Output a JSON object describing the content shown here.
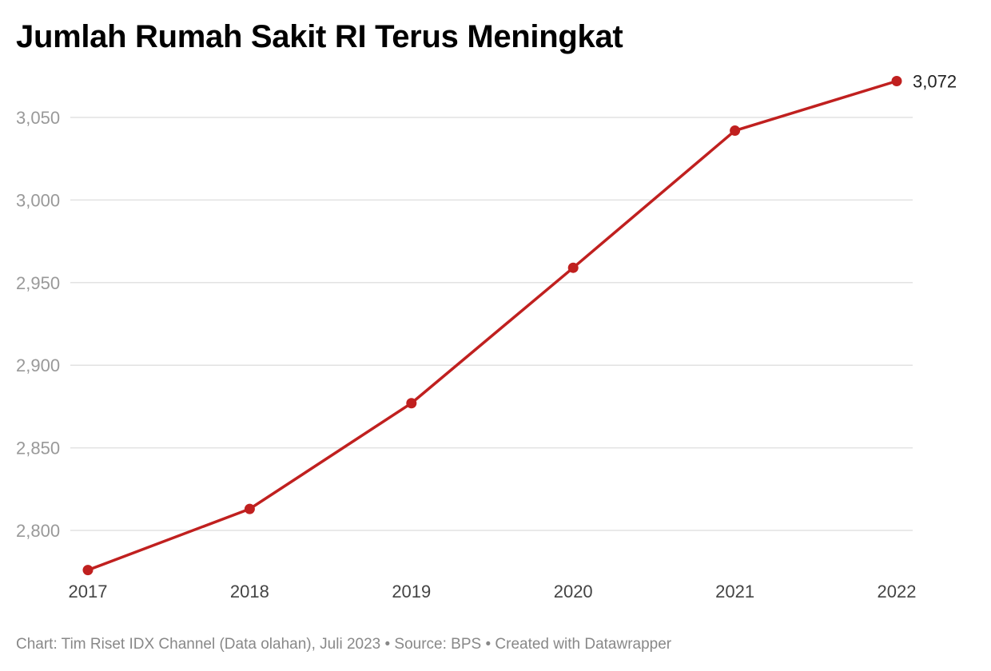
{
  "chart_data": {
    "type": "line",
    "title": "Jumlah Rumah Sakit RI Terus Meningkat",
    "xlabel": "",
    "ylabel": "",
    "categories": [
      "2017",
      "2018",
      "2019",
      "2020",
      "2021",
      "2022"
    ],
    "series": [
      {
        "values": [
          2776,
          2813,
          2877,
          2959,
          3042,
          3072
        ],
        "color": "#c0201f"
      }
    ],
    "yticks": [
      2800,
      2850,
      2900,
      2950,
      3000,
      3050
    ],
    "ytick_labels": [
      "2,800",
      "2,850",
      "2,900",
      "2,950",
      "3,000",
      "3,050"
    ],
    "ylim": [
      2770,
      3080
    ],
    "end_label": "3,072",
    "grid": true,
    "legend": "none"
  },
  "footer": {
    "text": "Chart: Tim Riset IDX Channel (Data olahan), Juli 2023 • Source: BPS • Created with Datawrapper"
  }
}
